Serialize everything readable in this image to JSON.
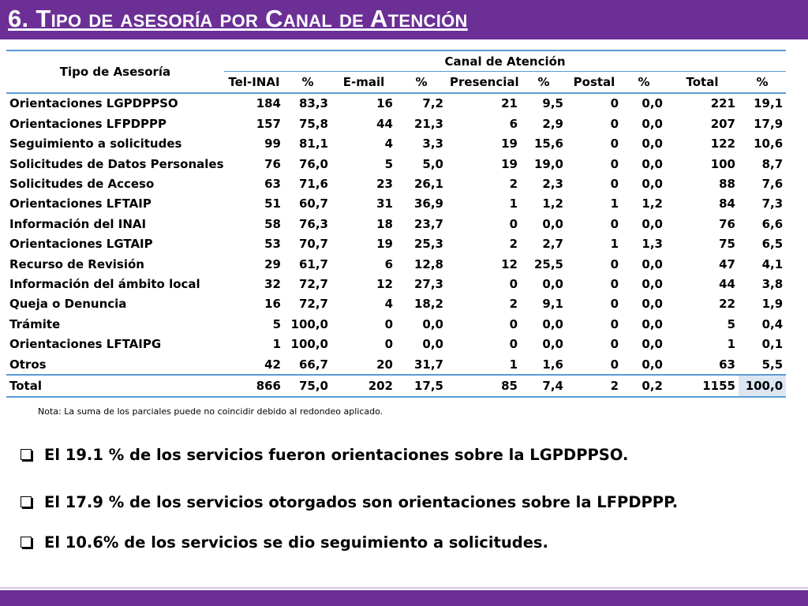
{
  "title": "6. Tipo de asesoría por Canal de Atención",
  "table": {
    "row_header": "Tipo de Asesoría",
    "group_header": "Canal de Atención",
    "columns": [
      "Tel-INAI",
      "%",
      "E-mail",
      "%",
      "Presencial",
      "%",
      "Postal",
      "%",
      "Total",
      "%"
    ],
    "rows": [
      {
        "name": "Orientaciones LGPDPPSO",
        "values": [
          "184",
          "83,3",
          "16",
          "7,2",
          "21",
          "9,5",
          "0",
          "0,0",
          "221",
          "19,1"
        ]
      },
      {
        "name": "Orientaciones LFPDPPP",
        "values": [
          "157",
          "75,8",
          "44",
          "21,3",
          "6",
          "2,9",
          "0",
          "0,0",
          "207",
          "17,9"
        ]
      },
      {
        "name": "Seguimiento a solicitudes",
        "values": [
          "99",
          "81,1",
          "4",
          "3,3",
          "19",
          "15,6",
          "0",
          "0,0",
          "122",
          "10,6"
        ]
      },
      {
        "name": "Solicitudes de Datos Personales",
        "values": [
          "76",
          "76,0",
          "5",
          "5,0",
          "19",
          "19,0",
          "0",
          "0,0",
          "100",
          "8,7"
        ]
      },
      {
        "name": "Solicitudes de Acceso",
        "values": [
          "63",
          "71,6",
          "23",
          "26,1",
          "2",
          "2,3",
          "0",
          "0,0",
          "88",
          "7,6"
        ]
      },
      {
        "name": "Orientaciones LFTAIP",
        "values": [
          "51",
          "60,7",
          "31",
          "36,9",
          "1",
          "1,2",
          "1",
          "1,2",
          "84",
          "7,3"
        ]
      },
      {
        "name": "Información del INAI",
        "values": [
          "58",
          "76,3",
          "18",
          "23,7",
          "0",
          "0,0",
          "0",
          "0,0",
          "76",
          "6,6"
        ]
      },
      {
        "name": "Orientaciones LGTAIP",
        "values": [
          "53",
          "70,7",
          "19",
          "25,3",
          "2",
          "2,7",
          "1",
          "1,3",
          "75",
          "6,5"
        ]
      },
      {
        "name": "Recurso de Revisión",
        "values": [
          "29",
          "61,7",
          "6",
          "12,8",
          "12",
          "25,5",
          "0",
          "0,0",
          "47",
          "4,1"
        ]
      },
      {
        "name": "Información del ámbito local",
        "values": [
          "32",
          "72,7",
          "12",
          "27,3",
          "0",
          "0,0",
          "0",
          "0,0",
          "44",
          "3,8"
        ]
      },
      {
        "name": "Queja o Denuncia",
        "values": [
          "16",
          "72,7",
          "4",
          "18,2",
          "2",
          "9,1",
          "0",
          "0,0",
          "22",
          "1,9"
        ]
      },
      {
        "name": "Trámite",
        "values": [
          "5",
          "100,0",
          "0",
          "0,0",
          "0",
          "0,0",
          "0",
          "0,0",
          "5",
          "0,4"
        ]
      },
      {
        "name": "Orientaciones LFTAIPG",
        "values": [
          "1",
          "100,0",
          "0",
          "0,0",
          "0",
          "0,0",
          "0",
          "0,0",
          "1",
          "0,1"
        ]
      },
      {
        "name": "Otros",
        "values": [
          "42",
          "66,7",
          "20",
          "31,7",
          "1",
          "1,6",
          "0",
          "0,0",
          "63",
          "5,5"
        ]
      }
    ],
    "total": {
      "name": "Total",
      "values": [
        "866",
        "75,0",
        "202",
        "17,5",
        "85",
        "7,4",
        "2",
        "0,2",
        "1155",
        "100,0"
      ]
    }
  },
  "note": "Nota: La suma de los parciales puede no coincidir debido al redondeo aplicado.",
  "bullets": [
    "El 19.1 % de los servicios fueron orientaciones sobre la LGPDPPSO.",
    "El 17.9 % de los servicios otorgados son orientaciones sobre la LFPDPPP.",
    "El 10.6% de los servicios se dio seguimiento a solicitudes."
  ],
  "colors": {
    "accent": "#6b2f96",
    "rule": "#5b9bd5",
    "highlight": "#dce6f2"
  }
}
